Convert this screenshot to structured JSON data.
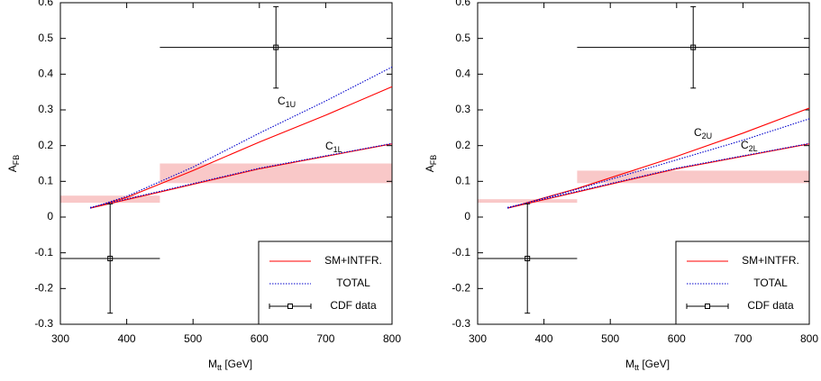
{
  "chart_data": [
    {
      "type": "line",
      "xlabel": {
        "text": "M",
        "sub": "tt",
        "rest": " [GeV]"
      },
      "ylabel": {
        "text": "A",
        "sub": "FB"
      },
      "xlim": [
        300,
        800
      ],
      "xticks": [
        300,
        400,
        500,
        600,
        700,
        800
      ],
      "ylim": [
        -0.3,
        0.6
      ],
      "yticks": [
        -0.3,
        -0.2,
        -0.1,
        0,
        0.1,
        0.2,
        0.3,
        0.4,
        0.5,
        0.6
      ],
      "grid": false,
      "legend": "lower right",
      "bands": [
        {
          "x": [
            300,
            450
          ],
          "y": [
            0.04,
            0.06
          ],
          "color": "#f9c8c8"
        },
        {
          "x": [
            450,
            800
          ],
          "y": [
            0.095,
            0.15
          ],
          "color": "#f9c8c8"
        }
      ],
      "series": [
        {
          "name": "SM+INTFR.",
          "color": "#ff0000",
          "style": "solid",
          "x": [
            345,
            400,
            500,
            600,
            700,
            800,
            null,
            345,
            450,
            600,
            800
          ],
          "values": [
            0.025,
            0.055,
            0.13,
            0.21,
            0.285,
            0.365,
            null,
            0.025,
            0.07,
            0.135,
            0.205
          ]
        },
        {
          "name": "TOTAL",
          "color": "#0000cc",
          "style": "dotted",
          "x": [
            345,
            400,
            500,
            600,
            700,
            800,
            null,
            345,
            450,
            600,
            800
          ],
          "values": [
            0.025,
            0.058,
            0.14,
            0.235,
            0.325,
            0.42,
            null,
            0.027,
            0.072,
            0.137,
            0.206
          ]
        },
        {
          "name": "CDF data",
          "color": "#000000",
          "style": "errorbar",
          "x": [
            375,
            625
          ],
          "values": [
            -0.116,
            0.475
          ],
          "xerr": [
            75,
            175
          ],
          "yerr": [
            0.153,
            0.114
          ]
        }
      ],
      "annotations": [
        {
          "text": "C",
          "sub": "1U"
        },
        {
          "text": "C",
          "sub": "1L"
        }
      ]
    },
    {
      "type": "line",
      "xlabel": {
        "text": "M",
        "sub": "tt",
        "rest": " [GeV]"
      },
      "ylabel": {
        "text": "A",
        "sub": "FB"
      },
      "xlim": [
        300,
        800
      ],
      "xticks": [
        300,
        400,
        500,
        600,
        700,
        800
      ],
      "ylim": [
        -0.3,
        0.6
      ],
      "yticks": [
        -0.3,
        -0.2,
        -0.1,
        0,
        0.1,
        0.2,
        0.3,
        0.4,
        0.5,
        0.6
      ],
      "grid": false,
      "legend": "lower right",
      "bands": [
        {
          "x": [
            300,
            450
          ],
          "y": [
            0.04,
            0.05
          ],
          "color": "#f9c8c8"
        },
        {
          "x": [
            450,
            800
          ],
          "y": [
            0.095,
            0.13
          ],
          "color": "#f9c8c8"
        }
      ],
      "series": [
        {
          "name": "SM+INTFR.",
          "color": "#ff0000",
          "style": "solid",
          "x": [
            345,
            450,
            600,
            700,
            800,
            null,
            345,
            450,
            600,
            800
          ],
          "values": [
            0.025,
            0.08,
            0.17,
            0.235,
            0.305,
            null,
            0.025,
            0.07,
            0.135,
            0.205
          ]
        },
        {
          "name": "TOTAL",
          "color": "#0000cc",
          "style": "dotted",
          "x": [
            345,
            450,
            600,
            700,
            800,
            null,
            345,
            450,
            600,
            800
          ],
          "values": [
            0.025,
            0.078,
            0.16,
            0.215,
            0.275,
            null,
            0.027,
            0.072,
            0.137,
            0.206
          ]
        },
        {
          "name": "CDF data",
          "color": "#000000",
          "style": "errorbar",
          "x": [
            375,
            625
          ],
          "values": [
            -0.116,
            0.475
          ],
          "xerr": [
            75,
            175
          ],
          "yerr": [
            0.153,
            0.114
          ]
        }
      ],
      "annotations": [
        {
          "text": "C",
          "sub": "2U"
        },
        {
          "text": "C",
          "sub": "2L"
        }
      ]
    }
  ]
}
